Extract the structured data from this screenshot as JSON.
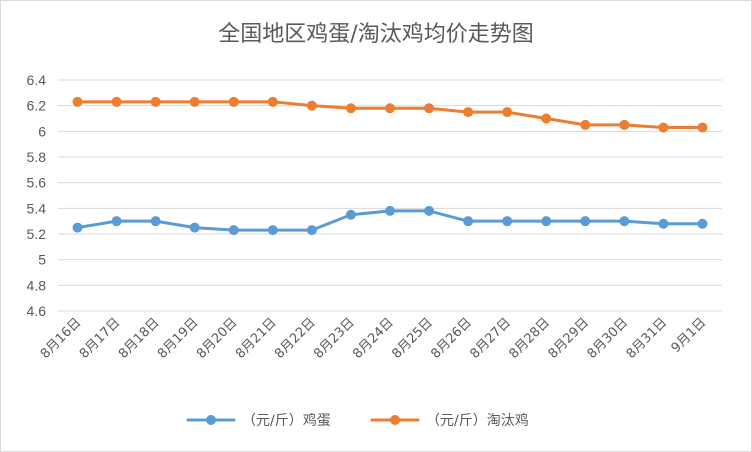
{
  "chart_data": {
    "type": "line",
    "title": "全国地区鸡蛋/淘汰鸡均价走势图",
    "categories": [
      "8月16日",
      "8月17日",
      "8月18日",
      "8月19日",
      "8月20日",
      "8月21日",
      "8月22日",
      "8月23日",
      "8月24日",
      "8月25日",
      "8月26日",
      "8月27日",
      "8月28日",
      "8月29日",
      "8月30日",
      "8月31日",
      "9月1日"
    ],
    "series": [
      {
        "name": "（元/斤）鸡蛋",
        "color": "#5b9bd5",
        "values": [
          5.25,
          5.3,
          5.3,
          5.25,
          5.23,
          5.23,
          5.23,
          5.35,
          5.38,
          5.38,
          5.3,
          5.3,
          5.3,
          5.3,
          5.3,
          5.28,
          5.28
        ]
      },
      {
        "name": "（元/斤）淘汰鸡",
        "color": "#ed7d31",
        "values": [
          6.23,
          6.23,
          6.23,
          6.23,
          6.23,
          6.23,
          6.2,
          6.18,
          6.18,
          6.18,
          6.15,
          6.15,
          6.1,
          6.05,
          6.05,
          6.03,
          6.03
        ]
      }
    ],
    "yticks": [
      "6.4",
      "6.2",
      "6",
      "5.8",
      "5.6",
      "5.4",
      "5.2",
      "5",
      "4.8",
      "4.6"
    ],
    "ylim": [
      4.6,
      6.4
    ],
    "grid": true,
    "legend": "bottom",
    "gridColor": "#d9d9d9"
  }
}
